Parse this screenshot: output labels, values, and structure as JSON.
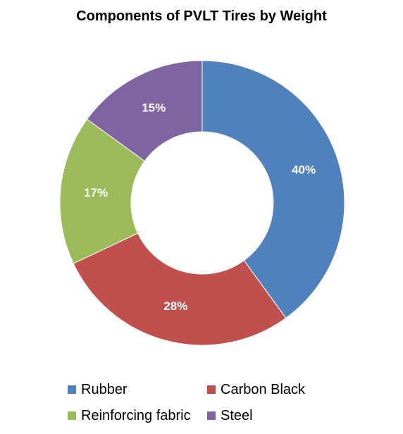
{
  "chart_data": {
    "type": "pie",
    "variant": "donut",
    "title": "Components of PVLT Tires by Weight",
    "categories": [
      "Rubber",
      "Carbon Black",
      "Reinforcing fabric",
      "Steel"
    ],
    "values": [
      40,
      28,
      17,
      15
    ],
    "data_labels": [
      "40%",
      "28%",
      "17%",
      "15%"
    ],
    "colors": [
      "#4f81bd",
      "#c0504d",
      "#9bbb59",
      "#8064a2"
    ],
    "legend_position": "bottom"
  }
}
